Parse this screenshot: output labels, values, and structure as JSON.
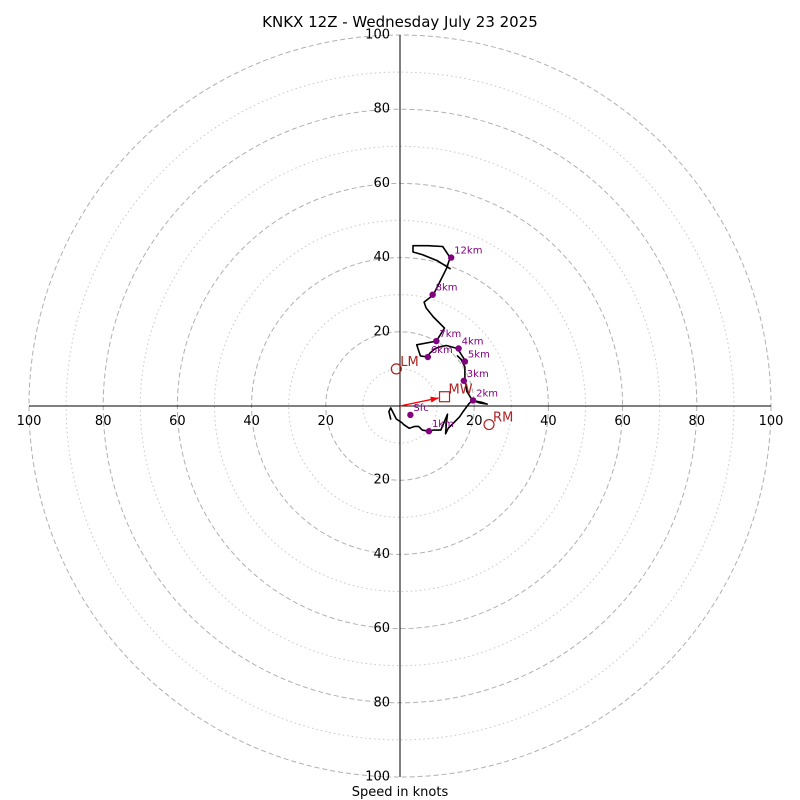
{
  "chart_data": {
    "type": "hodograph",
    "title": "KNKX 12Z - Wednesday July 23 2025",
    "xlabel": "Speed in knots",
    "ring_max": 100,
    "major_rings": [
      20,
      40,
      60,
      80,
      100
    ],
    "minor_rings": [
      10,
      30,
      50,
      70,
      90
    ],
    "ticks": {
      "left": [
        "100",
        "80",
        "60",
        "40",
        "20"
      ],
      "right": [
        "20",
        "40",
        "60",
        "80",
        "100"
      ],
      "top": [
        "20",
        "40",
        "60",
        "80",
        "100"
      ],
      "bottom": [
        "20",
        "40",
        "60",
        "80",
        "100"
      ]
    },
    "colors": {
      "trace": "#000000",
      "height_markers": "#800080",
      "storm_motion": "#b22222",
      "mean_wind_arrow": "#ff0000",
      "major_ring": "#b0b0b0",
      "minor_ring": "#c8c8c8",
      "axes": "#000000"
    },
    "trace": [
      [
        -2.5,
        -3.5
      ],
      [
        -3,
        -1.5
      ],
      [
        -2.5,
        -0.5
      ],
      [
        -1,
        -3.5
      ],
      [
        0.5,
        -4.5
      ],
      [
        1,
        -5
      ],
      [
        2.5,
        -6
      ],
      [
        4,
        -5.5
      ],
      [
        5,
        -5.5
      ],
      [
        6,
        -6.5
      ],
      [
        7.7,
        -6.8
      ],
      [
        9,
        -6.5
      ],
      [
        11,
        -6.5
      ],
      [
        12.8,
        -2.2
      ],
      [
        12.5,
        -4.5
      ],
      [
        12.3,
        -7.5
      ],
      [
        13,
        -6
      ],
      [
        14.5,
        -4.5
      ],
      [
        16,
        -3
      ],
      [
        17,
        -1.5
      ],
      [
        18.5,
        0.5
      ],
      [
        19.5,
        1.5
      ],
      [
        22,
        1
      ],
      [
        23.5,
        0.5
      ],
      [
        21.5,
        0.8
      ],
      [
        19.5,
        1.5
      ],
      [
        18,
        4
      ],
      [
        17.5,
        7
      ],
      [
        17.5,
        10.5
      ],
      [
        16.5,
        12.5
      ],
      [
        15.5,
        13.5
      ],
      [
        16.8,
        12.3
      ],
      [
        18,
        11.5
      ],
      [
        15.5,
        15.5
      ],
      [
        12.5,
        16.3
      ],
      [
        11,
        16
      ],
      [
        9.5,
        15.5
      ],
      [
        8,
        14.2
      ],
      [
        7.5,
        13.2
      ],
      [
        5.5,
        13.5
      ],
      [
        4.5,
        16.5
      ],
      [
        9.8,
        17.5
      ],
      [
        12,
        21
      ],
      [
        9,
        24
      ],
      [
        7,
        26.5
      ],
      [
        6.5,
        28
      ],
      [
        9,
        30
      ],
      [
        11,
        34
      ],
      [
        12.5,
        37
      ],
      [
        13.5,
        40
      ],
      [
        11.5,
        43
      ],
      [
        7.5,
        43.2
      ],
      [
        3.5,
        43.2
      ],
      [
        3.5,
        42
      ],
      [
        3.5,
        41.5
      ],
      [
        6,
        40.8
      ],
      [
        10,
        39.2
      ],
      [
        13.5,
        37
      ]
    ],
    "height_markers": [
      {
        "label": "Sfc",
        "u": 2.8,
        "v": -2.4
      },
      {
        "label": "1km",
        "u": 7.8,
        "v": -6.8
      },
      {
        "label": "2km",
        "u": 19.7,
        "v": 1.5
      },
      {
        "label": "3km",
        "u": 17.2,
        "v": 6.8
      },
      {
        "label": "4km",
        "u": 15.8,
        "v": 15.5
      },
      {
        "label": "5km",
        "u": 17.5,
        "v": 12
      },
      {
        "label": "6km",
        "u": 7.5,
        "v": 13.2
      },
      {
        "label": "7km",
        "u": 9.8,
        "v": 17.5
      },
      {
        "label": "8km",
        "u": 8.8,
        "v": 30
      },
      {
        "label": "12km",
        "u": 13.8,
        "v": 40
      }
    ],
    "storm_motion": [
      {
        "label": "LM",
        "marker": "circle",
        "u": -1,
        "v": 10
      },
      {
        "label": "RM",
        "marker": "circle",
        "u": 24,
        "v": -5
      },
      {
        "label": "MW",
        "marker": "square",
        "u": 12,
        "v": 2.5
      }
    ]
  }
}
